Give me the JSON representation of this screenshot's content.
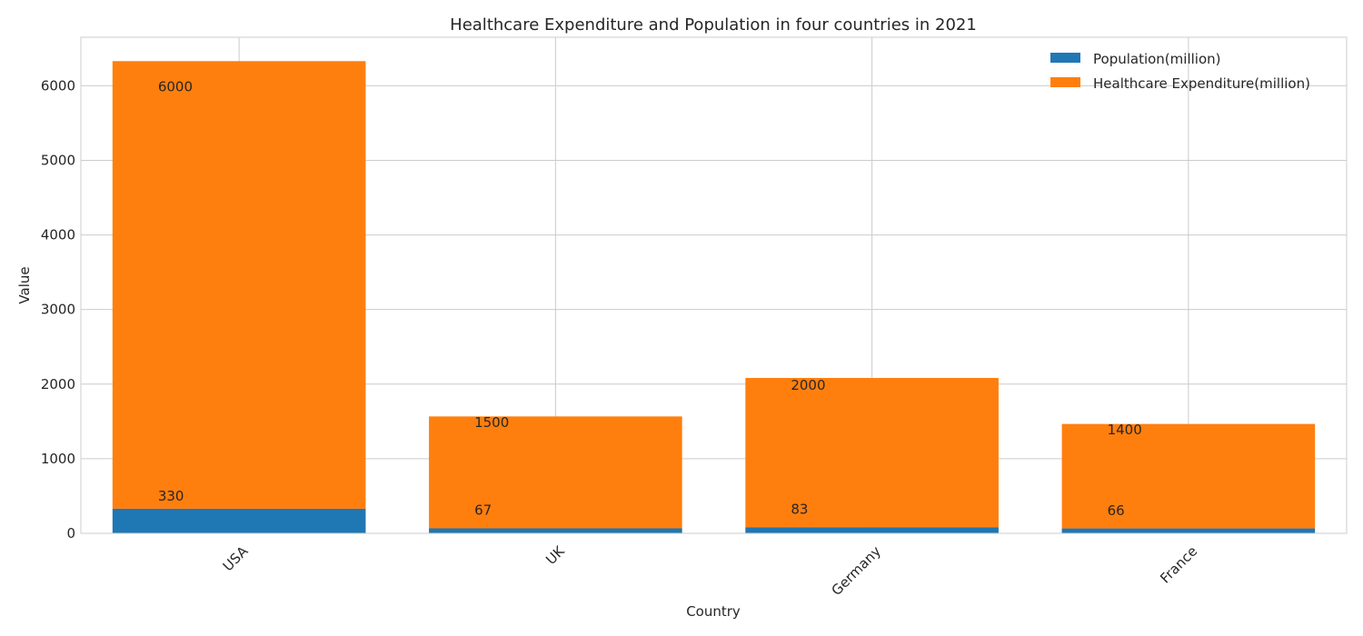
{
  "chart_data": {
    "type": "bar",
    "stacked": true,
    "title": "Healthcare Expenditure and Population in four countries in 2021",
    "xlabel": "Country",
    "ylabel": "Value",
    "categories": [
      "USA",
      "UK",
      "Germany",
      "France"
    ],
    "series": [
      {
        "name": "Population(million)",
        "values": [
          330,
          67,
          83,
          66
        ],
        "color": "#1f77b4"
      },
      {
        "name": "Healthcare Expenditure(million)",
        "values": [
          6000,
          1500,
          2000,
          1400
        ],
        "color": "#ff7f0e"
      }
    ],
    "ylim": [
      0,
      6650
    ],
    "yticks": [
      0,
      1000,
      2000,
      3000,
      4000,
      5000,
      6000
    ],
    "grid": true,
    "legend": "top-right",
    "x_tick_rotation": 45
  }
}
